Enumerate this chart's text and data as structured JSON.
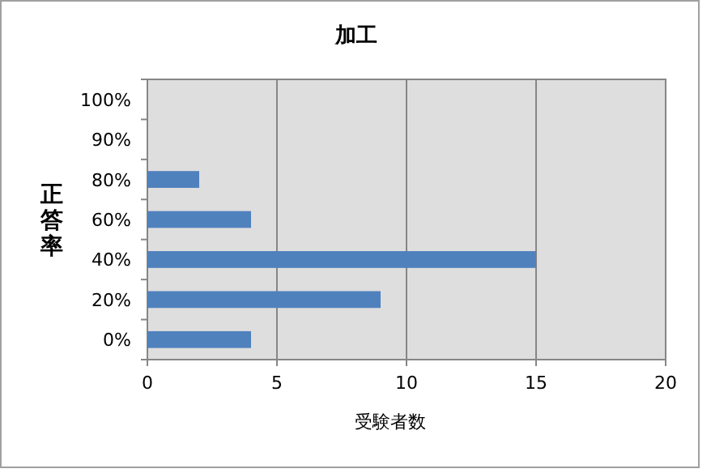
{
  "chart_data": {
    "type": "bar",
    "orientation": "horizontal",
    "title": "加工",
    "xlabel": "受験者数",
    "ylabel": "正答率",
    "categories": [
      "100%",
      "90%",
      "80%",
      "60%",
      "40%",
      "20%",
      "0%"
    ],
    "values": [
      0,
      0,
      2,
      4,
      15,
      9,
      4
    ],
    "color": "#4f81bd",
    "xlim": [
      0,
      20
    ],
    "xticks": [
      0,
      5,
      10,
      15,
      20
    ],
    "grid": "x"
  }
}
